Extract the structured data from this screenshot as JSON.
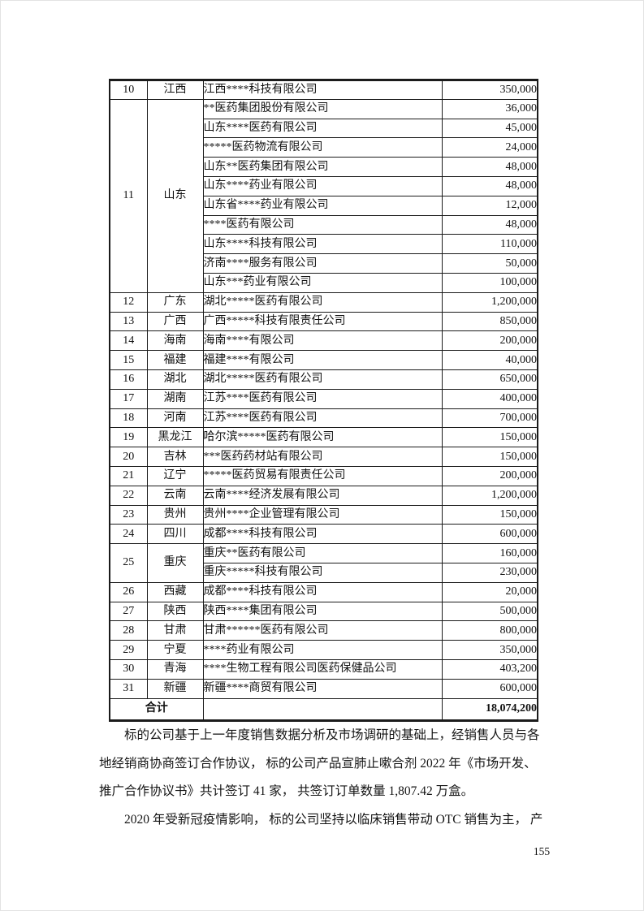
{
  "table": {
    "rows": [
      {
        "no": "10",
        "province": "江西",
        "companies": [
          {
            "name": "江西****科技有限公司",
            "value": "350,000"
          }
        ]
      },
      {
        "no": "11",
        "province": "山东",
        "companies": [
          {
            "name": "**医药集团股份有限公司",
            "value": "36,000"
          },
          {
            "name": "山东****医药有限公司",
            "value": "45,000"
          },
          {
            "name": "*****医药物流有限公司",
            "value": "24,000"
          },
          {
            "name": "山东**医药集团有限公司",
            "value": "48,000"
          },
          {
            "name": "山东****药业有限公司",
            "value": "48,000"
          },
          {
            "name": "山东省****药业有限公司",
            "value": "12,000"
          },
          {
            "name": "****医药有限公司",
            "value": "48,000"
          },
          {
            "name": "山东****科技有限公司",
            "value": "110,000"
          },
          {
            "name": "济南****服务有限公司",
            "value": "50,000"
          },
          {
            "name": "山东***药业有限公司",
            "value": "100,000"
          }
        ]
      },
      {
        "no": "12",
        "province": "广东",
        "companies": [
          {
            "name": "湖北*****医药有限公司",
            "value": "1,200,000"
          }
        ]
      },
      {
        "no": "13",
        "province": "广西",
        "companies": [
          {
            "name": "广西*****科技有限责任公司",
            "value": "850,000"
          }
        ]
      },
      {
        "no": "14",
        "province": "海南",
        "companies": [
          {
            "name": "海南****有限公司",
            "value": "200,000"
          }
        ]
      },
      {
        "no": "15",
        "province": "福建",
        "companies": [
          {
            "name": "福建****有限公司",
            "value": "40,000"
          }
        ]
      },
      {
        "no": "16",
        "province": "湖北",
        "companies": [
          {
            "name": "湖北*****医药有限公司",
            "value": "650,000"
          }
        ]
      },
      {
        "no": "17",
        "province": "湖南",
        "companies": [
          {
            "name": "江苏****医药有限公司",
            "value": "400,000"
          }
        ]
      },
      {
        "no": "18",
        "province": "河南",
        "companies": [
          {
            "name": "江苏****医药有限公司",
            "value": "700,000"
          }
        ]
      },
      {
        "no": "19",
        "province": "黑龙江",
        "companies": [
          {
            "name": "哈尔滨*****医药有限公司",
            "value": "150,000"
          }
        ]
      },
      {
        "no": "20",
        "province": "吉林",
        "companies": [
          {
            "name": "***医药药材站有限公司",
            "value": "150,000"
          }
        ]
      },
      {
        "no": "21",
        "province": "辽宁",
        "companies": [
          {
            "name": "*****医药贸易有限责任公司",
            "value": "200,000"
          }
        ]
      },
      {
        "no": "22",
        "province": "云南",
        "companies": [
          {
            "name": "云南****经济发展有限公司",
            "value": "1,200,000"
          }
        ]
      },
      {
        "no": "23",
        "province": "贵州",
        "companies": [
          {
            "name": "贵州****企业管理有限公司",
            "value": "150,000"
          }
        ]
      },
      {
        "no": "24",
        "province": "四川",
        "companies": [
          {
            "name": "成都****科技有限公司",
            "value": "600,000"
          }
        ]
      },
      {
        "no": "25",
        "province": "重庆",
        "companies": [
          {
            "name": "重庆**医药有限公司",
            "value": "160,000"
          },
          {
            "name": "重庆*****科技有限公司",
            "value": "230,000"
          }
        ]
      },
      {
        "no": "26",
        "province": "西藏",
        "companies": [
          {
            "name": "成都****科技有限公司",
            "value": "20,000"
          }
        ]
      },
      {
        "no": "27",
        "province": "陕西",
        "companies": [
          {
            "name": "陕西****集团有限公司",
            "value": "500,000"
          }
        ]
      },
      {
        "no": "28",
        "province": "甘肃",
        "companies": [
          {
            "name": "甘肃******医药有限公司",
            "value": "800,000"
          }
        ]
      },
      {
        "no": "29",
        "province": "宁夏",
        "companies": [
          {
            "name": "****药业有限公司",
            "value": "350,000"
          }
        ]
      },
      {
        "no": "30",
        "province": "青海",
        "companies": [
          {
            "name": "****生物工程有限公司医药保健品公司",
            "value": "403,200"
          }
        ]
      },
      {
        "no": "31",
        "province": "新疆",
        "companies": [
          {
            "name": "新疆****商贸有限公司",
            "value": "600,000"
          }
        ]
      }
    ],
    "total": {
      "label": "合计",
      "value": "18,074,200"
    }
  },
  "paragraphs": [
    {
      "lines": [
        "标的公司基于上一年度销售数据分析及市场调研的基础上，经销售人员与各",
        "地经销商协商签订合作协议， 标的公司产品宣肺止嗽合剂 2022 年《市场开发、",
        "推广合作协议书》共计签订 41 家， 共签订订单数量 1,807.42 万盒。"
      ]
    },
    {
      "lines": [
        "2020 年受新冠疫情影响， 标的公司坚持以临床销售带动 OTC 销售为主， 产"
      ]
    }
  ],
  "page": {
    "number": "155"
  }
}
